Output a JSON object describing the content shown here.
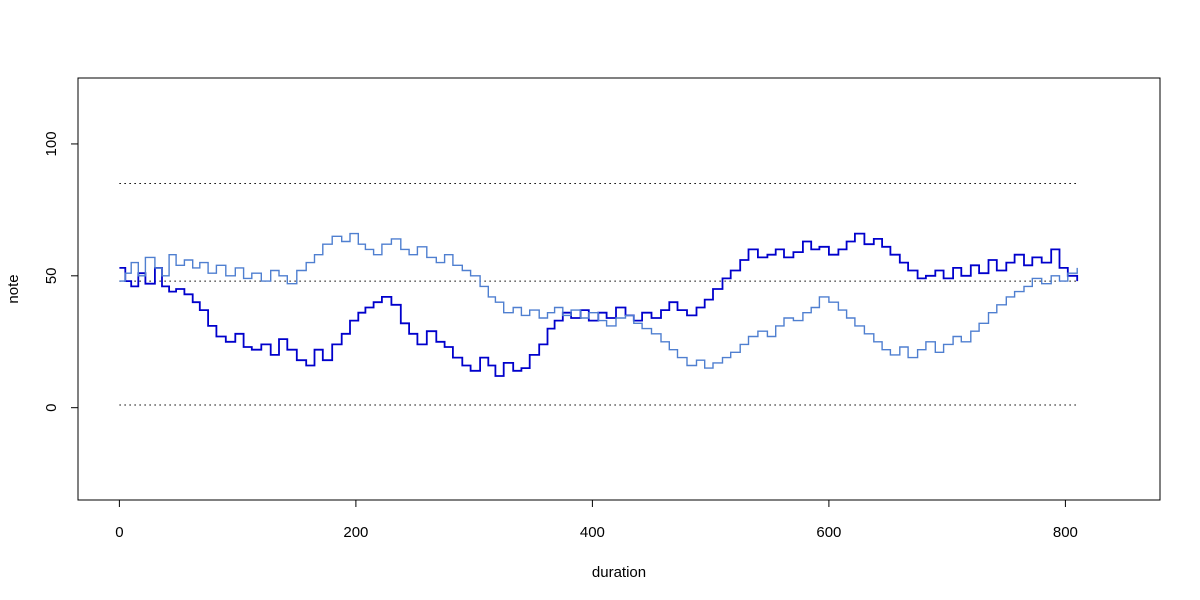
{
  "chart_data": {
    "type": "line",
    "title": "",
    "xlabel": "duration",
    "ylabel": "note",
    "xlim": [
      -35,
      880
    ],
    "ylim": [
      -35,
      125
    ],
    "x_ticks": [
      0,
      200,
      400,
      600,
      800
    ],
    "y_ticks": [
      0,
      50,
      100
    ],
    "grid": false,
    "legend": "none",
    "reference_lines": [
      {
        "y": 1,
        "x_from": 0,
        "x_to": 810,
        "style": "dotted"
      },
      {
        "y": 48,
        "x_from": 0,
        "x_to": 810,
        "style": "dotted"
      },
      {
        "y": 85,
        "x_from": 0,
        "x_to": 810,
        "style": "dotted"
      }
    ],
    "series": [
      {
        "color": "#0000cc",
        "step": "post",
        "points": [
          [
            0,
            53
          ],
          [
            5,
            48
          ],
          [
            10,
            46
          ],
          [
            16,
            51
          ],
          [
            22,
            47
          ],
          [
            30,
            53
          ],
          [
            36,
            46
          ],
          [
            42,
            44
          ],
          [
            48,
            45
          ],
          [
            55,
            43
          ],
          [
            62,
            40
          ],
          [
            68,
            37
          ],
          [
            75,
            31
          ],
          [
            82,
            27
          ],
          [
            90,
            25
          ],
          [
            98,
            28
          ],
          [
            105,
            23
          ],
          [
            112,
            22
          ],
          [
            120,
            24
          ],
          [
            128,
            20
          ],
          [
            135,
            26
          ],
          [
            142,
            22
          ],
          [
            150,
            18
          ],
          [
            158,
            16
          ],
          [
            165,
            22
          ],
          [
            172,
            18
          ],
          [
            180,
            24
          ],
          [
            188,
            28
          ],
          [
            195,
            33
          ],
          [
            202,
            36
          ],
          [
            208,
            38
          ],
          [
            215,
            40
          ],
          [
            222,
            42
          ],
          [
            230,
            39
          ],
          [
            238,
            32
          ],
          [
            245,
            28
          ],
          [
            252,
            24
          ],
          [
            260,
            29
          ],
          [
            268,
            25
          ],
          [
            275,
            23
          ],
          [
            282,
            19
          ],
          [
            290,
            16
          ],
          [
            297,
            14
          ],
          [
            305,
            19
          ],
          [
            312,
            16
          ],
          [
            318,
            12
          ],
          [
            325,
            17
          ],
          [
            333,
            14
          ],
          [
            340,
            15
          ],
          [
            347,
            20
          ],
          [
            355,
            24
          ],
          [
            362,
            30
          ],
          [
            368,
            33
          ],
          [
            375,
            36
          ],
          [
            382,
            34
          ],
          [
            390,
            37
          ],
          [
            397,
            33
          ],
          [
            405,
            36
          ],
          [
            412,
            34
          ],
          [
            420,
            38
          ],
          [
            428,
            35
          ],
          [
            435,
            33
          ],
          [
            442,
            36
          ],
          [
            450,
            34
          ],
          [
            458,
            37
          ],
          [
            465,
            40
          ],
          [
            472,
            37
          ],
          [
            480,
            35
          ],
          [
            488,
            38
          ],
          [
            495,
            41
          ],
          [
            502,
            45
          ],
          [
            510,
            49
          ],
          [
            517,
            52
          ],
          [
            525,
            56
          ],
          [
            532,
            60
          ],
          [
            540,
            57
          ],
          [
            548,
            58
          ],
          [
            555,
            60
          ],
          [
            562,
            57
          ],
          [
            570,
            59
          ],
          [
            578,
            63
          ],
          [
            585,
            60
          ],
          [
            592,
            61
          ],
          [
            600,
            58
          ],
          [
            608,
            60
          ],
          [
            615,
            63
          ],
          [
            622,
            66
          ],
          [
            630,
            62
          ],
          [
            638,
            64
          ],
          [
            645,
            61
          ],
          [
            652,
            58
          ],
          [
            660,
            55
          ],
          [
            667,
            52
          ],
          [
            675,
            49
          ],
          [
            682,
            50
          ],
          [
            690,
            52
          ],
          [
            697,
            49
          ],
          [
            705,
            53
          ],
          [
            712,
            50
          ],
          [
            720,
            54
          ],
          [
            727,
            51
          ],
          [
            735,
            56
          ],
          [
            742,
            52
          ],
          [
            750,
            55
          ],
          [
            757,
            58
          ],
          [
            765,
            54
          ],
          [
            772,
            57
          ],
          [
            780,
            55
          ],
          [
            788,
            60
          ],
          [
            795,
            53
          ],
          [
            802,
            50
          ],
          [
            810,
            48
          ]
        ]
      },
      {
        "color": "#4f7fd0",
        "step": "post",
        "points": [
          [
            0,
            48
          ],
          [
            5,
            51
          ],
          [
            10,
            55
          ],
          [
            16,
            50
          ],
          [
            22,
            57
          ],
          [
            30,
            53
          ],
          [
            36,
            50
          ],
          [
            42,
            58
          ],
          [
            48,
            54
          ],
          [
            55,
            56
          ],
          [
            62,
            53
          ],
          [
            68,
            55
          ],
          [
            75,
            51
          ],
          [
            82,
            54
          ],
          [
            90,
            50
          ],
          [
            98,
            53
          ],
          [
            105,
            49
          ],
          [
            112,
            51
          ],
          [
            120,
            48
          ],
          [
            128,
            52
          ],
          [
            135,
            50
          ],
          [
            142,
            47
          ],
          [
            150,
            52
          ],
          [
            158,
            55
          ],
          [
            165,
            58
          ],
          [
            172,
            62
          ],
          [
            180,
            65
          ],
          [
            188,
            63
          ],
          [
            195,
            66
          ],
          [
            202,
            62
          ],
          [
            208,
            60
          ],
          [
            215,
            58
          ],
          [
            222,
            62
          ],
          [
            230,
            64
          ],
          [
            238,
            60
          ],
          [
            245,
            58
          ],
          [
            252,
            61
          ],
          [
            260,
            57
          ],
          [
            268,
            55
          ],
          [
            275,
            58
          ],
          [
            282,
            54
          ],
          [
            290,
            52
          ],
          [
            297,
            50
          ],
          [
            305,
            46
          ],
          [
            312,
            42
          ],
          [
            318,
            40
          ],
          [
            325,
            36
          ],
          [
            333,
            38
          ],
          [
            340,
            35
          ],
          [
            347,
            37
          ],
          [
            355,
            34
          ],
          [
            362,
            36
          ],
          [
            368,
            38
          ],
          [
            375,
            35
          ],
          [
            382,
            37
          ],
          [
            390,
            34
          ],
          [
            397,
            36
          ],
          [
            405,
            33
          ],
          [
            412,
            31
          ],
          [
            420,
            34
          ],
          [
            428,
            35
          ],
          [
            435,
            32
          ],
          [
            442,
            30
          ],
          [
            450,
            28
          ],
          [
            458,
            25
          ],
          [
            465,
            22
          ],
          [
            472,
            19
          ],
          [
            480,
            16
          ],
          [
            488,
            18
          ],
          [
            495,
            15
          ],
          [
            502,
            17
          ],
          [
            510,
            19
          ],
          [
            517,
            21
          ],
          [
            525,
            24
          ],
          [
            532,
            27
          ],
          [
            540,
            29
          ],
          [
            548,
            27
          ],
          [
            555,
            31
          ],
          [
            562,
            34
          ],
          [
            570,
            33
          ],
          [
            578,
            36
          ],
          [
            585,
            38
          ],
          [
            592,
            42
          ],
          [
            600,
            40
          ],
          [
            608,
            37
          ],
          [
            615,
            34
          ],
          [
            622,
            31
          ],
          [
            630,
            28
          ],
          [
            638,
            25
          ],
          [
            645,
            22
          ],
          [
            652,
            20
          ],
          [
            660,
            23
          ],
          [
            667,
            19
          ],
          [
            675,
            22
          ],
          [
            682,
            25
          ],
          [
            690,
            21
          ],
          [
            697,
            24
          ],
          [
            705,
            27
          ],
          [
            712,
            25
          ],
          [
            720,
            29
          ],
          [
            727,
            32
          ],
          [
            735,
            36
          ],
          [
            742,
            39
          ],
          [
            750,
            42
          ],
          [
            757,
            44
          ],
          [
            765,
            46
          ],
          [
            772,
            49
          ],
          [
            780,
            47
          ],
          [
            788,
            50
          ],
          [
            795,
            48
          ],
          [
            802,
            51
          ],
          [
            810,
            53
          ]
        ]
      }
    ]
  }
}
